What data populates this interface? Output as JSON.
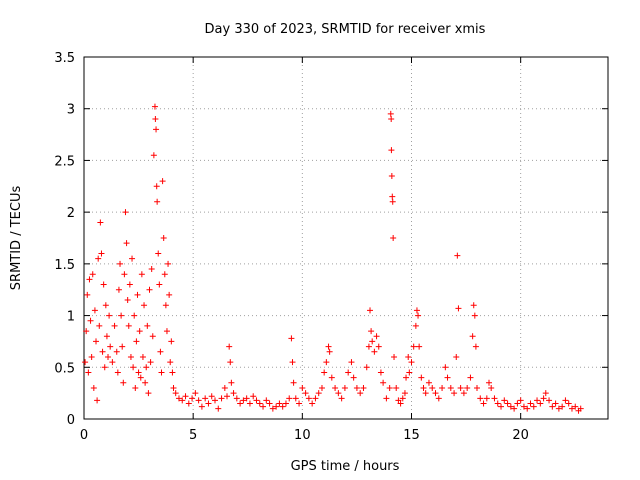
{
  "chart_data": {
    "type": "scatter",
    "title": "Day 330 of 2023, SRMTID for receiver xmis",
    "xlabel": "GPS time / hours",
    "ylabel": "SRMTID / TECUs",
    "xlim": [
      0,
      24
    ],
    "ylim": [
      0,
      3.5
    ],
    "x_ticks": [
      0,
      5,
      10,
      15,
      20
    ],
    "x_tick_labels": [
      "0",
      "5",
      "10",
      "15",
      "20"
    ],
    "y_ticks": [
      0,
      0.5,
      1,
      1.5,
      2,
      2.5,
      3,
      3.5
    ],
    "y_tick_labels": [
      "0",
      "0.5",
      "1",
      "1.5",
      "2",
      "2.5",
      "3",
      "3.5"
    ],
    "grid": true,
    "marker": "plus",
    "series": [
      {
        "name": "SRMTID",
        "color": "#ff0000",
        "points": [
          [
            0.05,
            0.55
          ],
          [
            0.1,
            0.85
          ],
          [
            0.15,
            1.2
          ],
          [
            0.2,
            0.45
          ],
          [
            0.25,
            1.35
          ],
          [
            0.3,
            0.95
          ],
          [
            0.35,
            0.6
          ],
          [
            0.4,
            1.4
          ],
          [
            0.45,
            0.3
          ],
          [
            0.5,
            1.05
          ],
          [
            0.55,
            0.75
          ],
          [
            0.6,
            0.18
          ],
          [
            0.65,
            1.55
          ],
          [
            0.7,
            0.9
          ],
          [
            0.75,
            1.9
          ],
          [
            0.8,
            1.6
          ],
          [
            0.85,
            0.65
          ],
          [
            0.9,
            1.3
          ],
          [
            0.95,
            0.5
          ],
          [
            1.0,
            1.1
          ],
          [
            1.05,
            0.8
          ],
          [
            1.1,
            0.6
          ],
          [
            1.15,
            1.0
          ],
          [
            1.2,
            0.7
          ],
          [
            1.3,
            0.55
          ],
          [
            1.4,
            0.9
          ],
          [
            1.5,
            0.65
          ],
          [
            1.55,
            0.45
          ],
          [
            1.6,
            1.25
          ],
          [
            1.65,
            1.5
          ],
          [
            1.7,
            1.0
          ],
          [
            1.75,
            0.7
          ],
          [
            1.8,
            0.35
          ],
          [
            1.85,
            1.4
          ],
          [
            1.9,
            2.0
          ],
          [
            1.95,
            1.7
          ],
          [
            2.0,
            1.15
          ],
          [
            2.05,
            0.9
          ],
          [
            2.1,
            1.3
          ],
          [
            2.15,
            0.6
          ],
          [
            2.2,
            1.55
          ],
          [
            2.25,
            0.5
          ],
          [
            2.3,
            1.0
          ],
          [
            2.35,
            0.3
          ],
          [
            2.4,
            0.75
          ],
          [
            2.45,
            1.2
          ],
          [
            2.5,
            0.45
          ],
          [
            2.55,
            0.85
          ],
          [
            2.6,
            0.4
          ],
          [
            2.65,
            1.4
          ],
          [
            2.7,
            0.6
          ],
          [
            2.75,
            1.1
          ],
          [
            2.8,
            0.35
          ],
          [
            2.85,
            0.5
          ],
          [
            2.9,
            0.9
          ],
          [
            2.95,
            0.25
          ],
          [
            3.0,
            1.25
          ],
          [
            3.05,
            0.55
          ],
          [
            3.1,
            1.45
          ],
          [
            3.15,
            0.8
          ],
          [
            3.2,
            2.55
          ],
          [
            3.25,
            3.02
          ],
          [
            3.27,
            2.9
          ],
          [
            3.3,
            2.8
          ],
          [
            3.33,
            2.25
          ],
          [
            3.35,
            2.1
          ],
          [
            3.4,
            1.6
          ],
          [
            3.45,
            1.3
          ],
          [
            3.5,
            0.65
          ],
          [
            3.55,
            0.45
          ],
          [
            3.6,
            2.3
          ],
          [
            3.65,
            1.75
          ],
          [
            3.7,
            1.4
          ],
          [
            3.75,
            1.1
          ],
          [
            3.8,
            0.85
          ],
          [
            3.85,
            1.5
          ],
          [
            3.9,
            1.2
          ],
          [
            3.95,
            0.55
          ],
          [
            4.0,
            0.75
          ],
          [
            4.05,
            0.45
          ],
          [
            4.1,
            0.3
          ],
          [
            4.2,
            0.25
          ],
          [
            4.35,
            0.2
          ],
          [
            4.5,
            0.18
          ],
          [
            4.65,
            0.22
          ],
          [
            4.8,
            0.15
          ],
          [
            4.95,
            0.2
          ],
          [
            5.1,
            0.25
          ],
          [
            5.25,
            0.18
          ],
          [
            5.4,
            0.12
          ],
          [
            5.55,
            0.2
          ],
          [
            5.7,
            0.15
          ],
          [
            5.85,
            0.22
          ],
          [
            6.0,
            0.18
          ],
          [
            6.15,
            0.1
          ],
          [
            6.3,
            0.2
          ],
          [
            6.45,
            0.3
          ],
          [
            6.55,
            0.22
          ],
          [
            6.65,
            0.7
          ],
          [
            6.7,
            0.55
          ],
          [
            6.75,
            0.35
          ],
          [
            6.85,
            0.25
          ],
          [
            7.0,
            0.2
          ],
          [
            7.15,
            0.15
          ],
          [
            7.3,
            0.18
          ],
          [
            7.45,
            0.2
          ],
          [
            7.6,
            0.15
          ],
          [
            7.75,
            0.22
          ],
          [
            7.9,
            0.18
          ],
          [
            8.05,
            0.15
          ],
          [
            8.2,
            0.12
          ],
          [
            8.35,
            0.18
          ],
          [
            8.5,
            0.15
          ],
          [
            8.65,
            0.1
          ],
          [
            8.8,
            0.12
          ],
          [
            8.95,
            0.15
          ],
          [
            9.1,
            0.12
          ],
          [
            9.25,
            0.15
          ],
          [
            9.4,
            0.2
          ],
          [
            9.5,
            0.78
          ],
          [
            9.55,
            0.55
          ],
          [
            9.6,
            0.35
          ],
          [
            9.7,
            0.2
          ],
          [
            9.85,
            0.15
          ],
          [
            10.0,
            0.3
          ],
          [
            10.15,
            0.25
          ],
          [
            10.3,
            0.2
          ],
          [
            10.45,
            0.15
          ],
          [
            10.6,
            0.2
          ],
          [
            10.75,
            0.25
          ],
          [
            10.9,
            0.3
          ],
          [
            11.0,
            0.45
          ],
          [
            11.1,
            0.55
          ],
          [
            11.2,
            0.7
          ],
          [
            11.25,
            0.65
          ],
          [
            11.35,
            0.4
          ],
          [
            11.5,
            0.3
          ],
          [
            11.65,
            0.25
          ],
          [
            11.8,
            0.2
          ],
          [
            11.95,
            0.3
          ],
          [
            12.1,
            0.45
          ],
          [
            12.25,
            0.55
          ],
          [
            12.35,
            0.4
          ],
          [
            12.5,
            0.3
          ],
          [
            12.65,
            0.25
          ],
          [
            12.8,
            0.3
          ],
          [
            12.95,
            0.5
          ],
          [
            13.05,
            0.7
          ],
          [
            13.1,
            1.05
          ],
          [
            13.15,
            0.85
          ],
          [
            13.2,
            0.75
          ],
          [
            13.3,
            0.65
          ],
          [
            13.4,
            0.8
          ],
          [
            13.5,
            0.7
          ],
          [
            13.6,
            0.45
          ],
          [
            13.7,
            0.35
          ],
          [
            13.85,
            0.2
          ],
          [
            14.0,
            0.3
          ],
          [
            14.05,
            2.95
          ],
          [
            14.07,
            2.9
          ],
          [
            14.08,
            2.6
          ],
          [
            14.1,
            2.35
          ],
          [
            14.12,
            2.15
          ],
          [
            14.14,
            2.1
          ],
          [
            14.16,
            1.75
          ],
          [
            14.2,
            0.6
          ],
          [
            14.3,
            0.3
          ],
          [
            14.4,
            0.18
          ],
          [
            14.5,
            0.15
          ],
          [
            14.6,
            0.2
          ],
          [
            14.7,
            0.25
          ],
          [
            14.75,
            0.4
          ],
          [
            14.85,
            0.6
          ],
          [
            14.9,
            0.45
          ],
          [
            15.0,
            0.55
          ],
          [
            15.1,
            0.7
          ],
          [
            15.2,
            0.9
          ],
          [
            15.25,
            1.05
          ],
          [
            15.3,
            1.0
          ],
          [
            15.35,
            0.7
          ],
          [
            15.45,
            0.4
          ],
          [
            15.55,
            0.3
          ],
          [
            15.65,
            0.25
          ],
          [
            15.8,
            0.35
          ],
          [
            15.95,
            0.3
          ],
          [
            16.1,
            0.25
          ],
          [
            16.25,
            0.2
          ],
          [
            16.4,
            0.3
          ],
          [
            16.55,
            0.5
          ],
          [
            16.65,
            0.4
          ],
          [
            16.8,
            0.3
          ],
          [
            16.95,
            0.25
          ],
          [
            17.05,
            0.6
          ],
          [
            17.1,
            1.58
          ],
          [
            17.15,
            1.07
          ],
          [
            17.25,
            0.3
          ],
          [
            17.4,
            0.25
          ],
          [
            17.55,
            0.3
          ],
          [
            17.7,
            0.4
          ],
          [
            17.8,
            0.8
          ],
          [
            17.85,
            1.1
          ],
          [
            17.9,
            1.0
          ],
          [
            17.95,
            0.7
          ],
          [
            18.0,
            0.3
          ],
          [
            18.15,
            0.2
          ],
          [
            18.3,
            0.15
          ],
          [
            18.45,
            0.2
          ],
          [
            18.55,
            0.35
          ],
          [
            18.65,
            0.3
          ],
          [
            18.8,
            0.2
          ],
          [
            18.95,
            0.15
          ],
          [
            19.1,
            0.12
          ],
          [
            19.25,
            0.18
          ],
          [
            19.4,
            0.15
          ],
          [
            19.55,
            0.12
          ],
          [
            19.7,
            0.1
          ],
          [
            19.85,
            0.15
          ],
          [
            20.0,
            0.18
          ],
          [
            20.15,
            0.12
          ],
          [
            20.3,
            0.1
          ],
          [
            20.45,
            0.15
          ],
          [
            20.6,
            0.12
          ],
          [
            20.75,
            0.18
          ],
          [
            20.9,
            0.15
          ],
          [
            21.05,
            0.2
          ],
          [
            21.15,
            0.25
          ],
          [
            21.3,
            0.18
          ],
          [
            21.45,
            0.12
          ],
          [
            21.6,
            0.15
          ],
          [
            21.75,
            0.1
          ],
          [
            21.9,
            0.12
          ],
          [
            22.05,
            0.18
          ],
          [
            22.2,
            0.15
          ],
          [
            22.35,
            0.1
          ],
          [
            22.5,
            0.12
          ],
          [
            22.65,
            0.08
          ],
          [
            22.75,
            0.1
          ]
        ]
      }
    ]
  }
}
